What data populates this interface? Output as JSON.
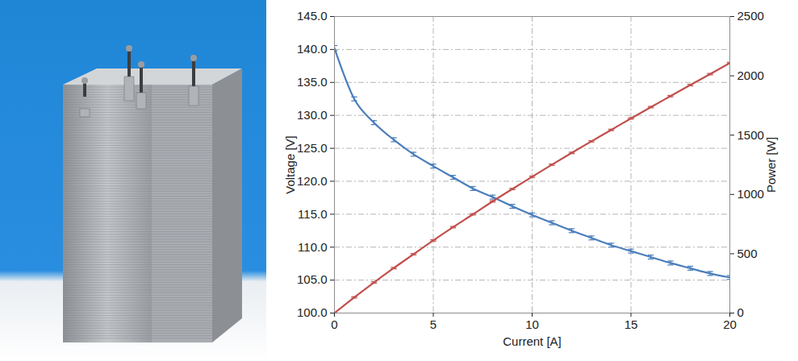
{
  "chart_data": {
    "type": "line",
    "xlabel": "Current [A]",
    "ylabel": "Voltage [V]",
    "y2label": "Power [W]",
    "x": [
      0,
      1,
      2,
      3,
      4,
      5,
      6,
      7,
      8,
      9,
      10,
      11,
      12,
      13,
      14,
      15,
      16,
      17,
      18,
      19,
      20
    ],
    "xlim": [
      0,
      20
    ],
    "xticks": [
      0,
      5,
      10,
      15,
      20
    ],
    "ylim": [
      100,
      145
    ],
    "yticks": [
      {
        "value": 100,
        "label": "100.0"
      },
      {
        "value": 105,
        "label": "105.0"
      },
      {
        "value": 110,
        "label": "110.0"
      },
      {
        "value": 115,
        "label": "115.0"
      },
      {
        "value": 120,
        "label": "120.0"
      },
      {
        "value": 125,
        "label": "125.0"
      },
      {
        "value": 130,
        "label": "130.0"
      },
      {
        "value": 135,
        "label": "135.0"
      },
      {
        "value": 140,
        "label": "140.0"
      },
      {
        "value": 145,
        "label": "145.0"
      }
    ],
    "y2lim": [
      0,
      2500
    ],
    "y2ticks": [
      0,
      500,
      1000,
      1500,
      2000,
      2500
    ],
    "grid": true,
    "series": [
      {
        "color": "#4a7ebb",
        "marker": "none",
        "line_style": "solid",
        "values": [
          140.2,
          132.5,
          128.9,
          126.3,
          124.1,
          122.3,
          120.6,
          118.9,
          117.6,
          116.2,
          114.9,
          113.7,
          112.5,
          111.4,
          110.3,
          109.4,
          108.5,
          107.6,
          106.8,
          106.0,
          105.4
        ],
        "errors": [
          0.4,
          0.3,
          0.3,
          0.3,
          0.3,
          0.3,
          0.3,
          0.3,
          0.3,
          0.3,
          0.3,
          0.3,
          0.3,
          0.3,
          0.3,
          0.3,
          0.3,
          0.3,
          0.3,
          0.3,
          0.3
        ]
      },
      {
        "axis": "y2",
        "color": "#c0504d",
        "marker": "none",
        "line_style": "solid",
        "values": [
          0,
          132,
          258,
          379,
          496,
          612,
          724,
          832,
          941,
          1046,
          1149,
          1251,
          1350,
          1448,
          1544,
          1641,
          1736,
          1829,
          1922,
          2014,
          2108
        ],
        "errors": [
          0,
          6,
          6,
          6,
          6,
          6,
          6,
          6,
          6,
          6,
          6,
          6,
          6,
          6,
          6,
          6,
          6,
          6,
          6,
          6,
          6
        ]
      }
    ]
  }
}
